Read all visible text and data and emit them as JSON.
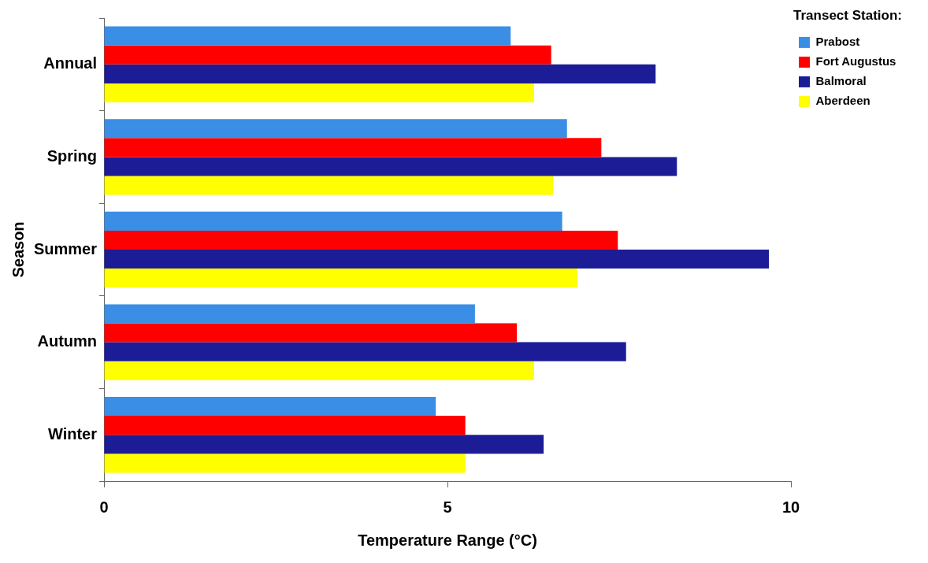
{
  "chart_data": {
    "type": "bar",
    "orientation": "horizontal",
    "xlabel": "Temperature Range (°C)",
    "ylabel": "Season",
    "legend_title": "Transect Station:",
    "legend": "top right",
    "grid": false,
    "categories": [
      "Annual",
      "Spring",
      "Summer",
      "Autumn",
      "Winter"
    ],
    "xlim": [
      0,
      10
    ],
    "xticks": [
      0,
      5,
      10
    ],
    "series": [
      {
        "name": "Prabost",
        "color": "#3a8ee6",
        "values": [
          5.92,
          6.74,
          6.67,
          5.4,
          4.83
        ]
      },
      {
        "name": "Fort Augustus",
        "color": "#ff0000",
        "values": [
          6.51,
          7.24,
          7.48,
          6.01,
          5.26
        ]
      },
      {
        "name": "Balmoral",
        "color": "#1c1c96",
        "values": [
          8.03,
          8.34,
          9.68,
          7.6,
          6.4
        ]
      },
      {
        "name": "Aberdeen",
        "color": "#ffff00",
        "values": [
          6.26,
          6.54,
          6.89,
          6.26,
          5.26
        ]
      }
    ]
  }
}
